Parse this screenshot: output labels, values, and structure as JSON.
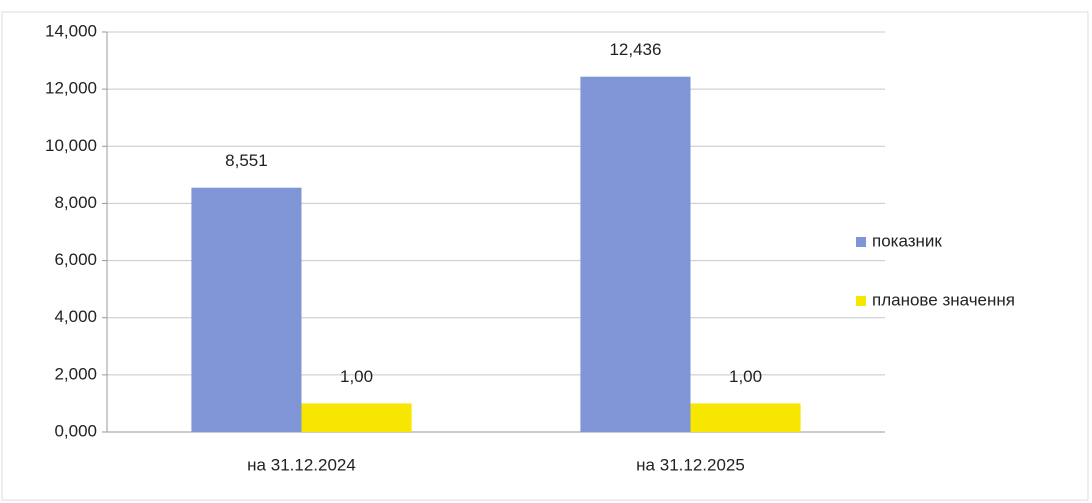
{
  "chart_data": {
    "type": "bar",
    "categories": [
      "на 31.12.2024",
      "на 31.12.2025"
    ],
    "series": [
      {
        "name": "показник",
        "color": "#7f95d6",
        "values": [
          8.551,
          12.436
        ],
        "value_labels": [
          "8,551",
          "12,436"
        ]
      },
      {
        "name": "планове значення",
        "color": "#f7e600",
        "values": [
          1,
          1
        ],
        "value_labels": [
          "1,00",
          "1,00"
        ]
      }
    ],
    "ylim": [
      0,
      14
    ],
    "yticks": [
      {
        "value": 0,
        "label": "0,000"
      },
      {
        "value": 2,
        "label": "2,000"
      },
      {
        "value": 4,
        "label": "4,000"
      },
      {
        "value": 6,
        "label": "6,000"
      },
      {
        "value": 8,
        "label": "8,000"
      },
      {
        "value": 10,
        "label": "10,000"
      },
      {
        "value": 12,
        "label": "12,000"
      },
      {
        "value": 14,
        "label": "14,000"
      }
    ],
    "grid": true,
    "legend": "right"
  }
}
